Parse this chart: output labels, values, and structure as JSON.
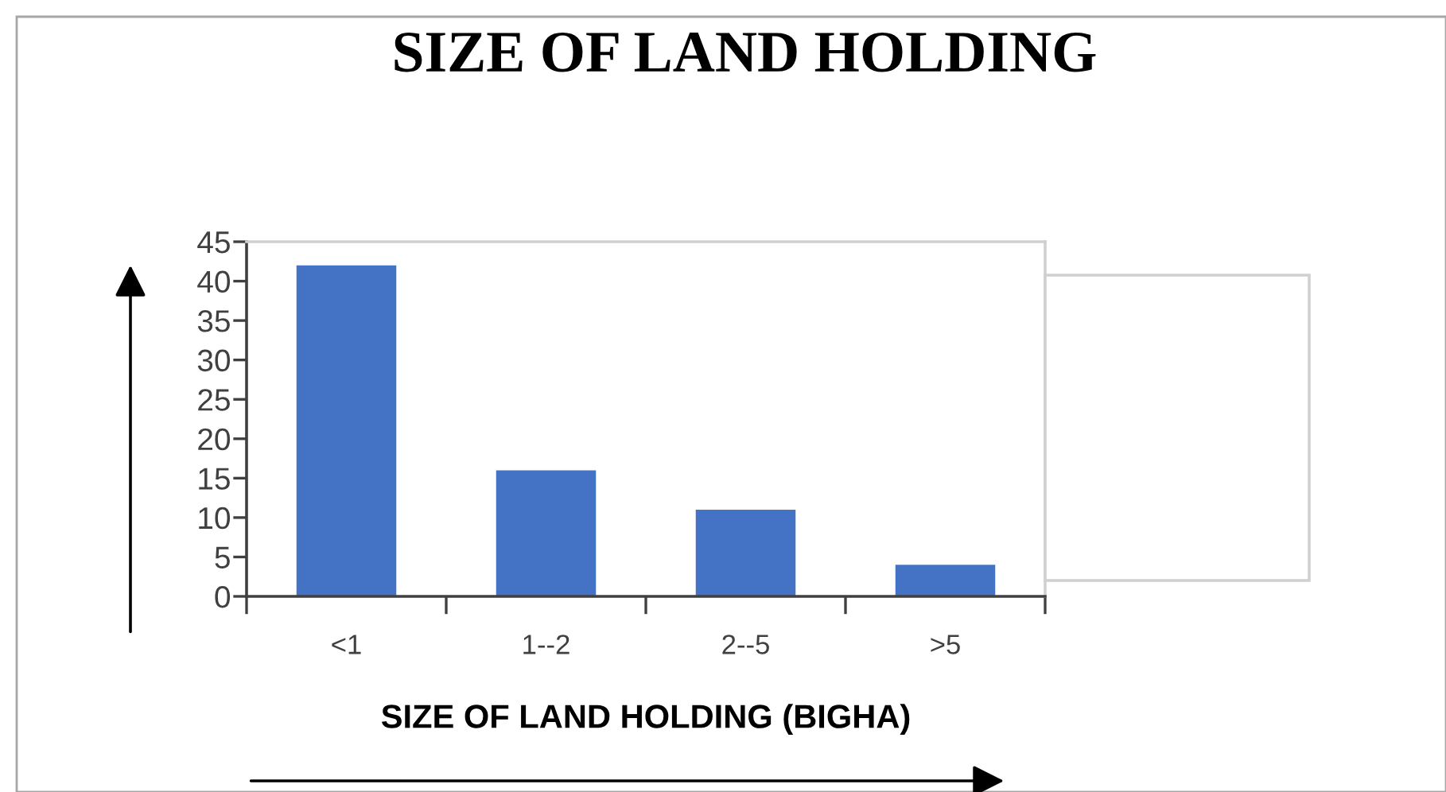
{
  "chart_data": {
    "type": "bar",
    "title": "SIZE OF LAND HOLDING",
    "xlabel": "SIZE OF LAND HOLDING (BIGHA)",
    "categories": [
      "<1",
      "1--2",
      "2--5",
      ">5"
    ],
    "values": [
      42,
      16,
      11,
      4
    ],
    "color": "#4472c4",
    "ylim": [
      0,
      45
    ],
    "yticks": [
      0,
      5,
      10,
      15,
      20,
      25,
      30,
      35,
      40,
      45
    ]
  }
}
